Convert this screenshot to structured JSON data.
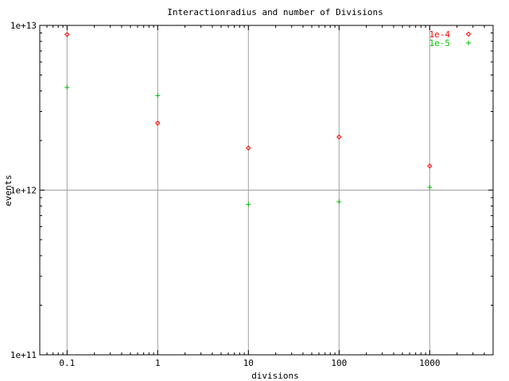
{
  "chart_data": {
    "type": "scatter",
    "title": "Interactionradius and number of Divisions",
    "xlabel": "divisions",
    "ylabel": "events",
    "x_scale": "log",
    "y_scale": "log",
    "xlim": [
      0.05,
      5000
    ],
    "ylim": [
      100000000000.0,
      10000000000000.0
    ],
    "x_ticks": [
      0.1,
      1,
      10,
      100,
      1000
    ],
    "x_tick_labels": [
      "0.1",
      "1",
      "10",
      "100",
      "1000"
    ],
    "y_ticks": [
      100000000000.0,
      1000000000000.0,
      10000000000000.0
    ],
    "y_tick_labels": [
      "1e+11",
      "1e+12",
      "1e+13"
    ],
    "grid": true,
    "legend_position": "top-right",
    "series": [
      {
        "name": "1e-4",
        "color": "#ff0000",
        "marker": "diamond",
        "marker_glyph": "◇",
        "x": [
          0.1,
          1,
          10,
          100,
          1000
        ],
        "y": [
          8800000000000.0,
          2550000000000.0,
          1800000000000.0,
          2100000000000.0,
          1400000000000.0
        ]
      },
      {
        "name": "1e-5",
        "color": "#00c000",
        "marker": "plus",
        "marker_glyph": "+",
        "x": [
          0.1,
          1,
          10,
          100,
          1000
        ],
        "y": [
          4200000000000.0,
          3750000000000.0,
          820000000000.0,
          850000000000.0,
          1040000000000.0
        ]
      }
    ]
  }
}
